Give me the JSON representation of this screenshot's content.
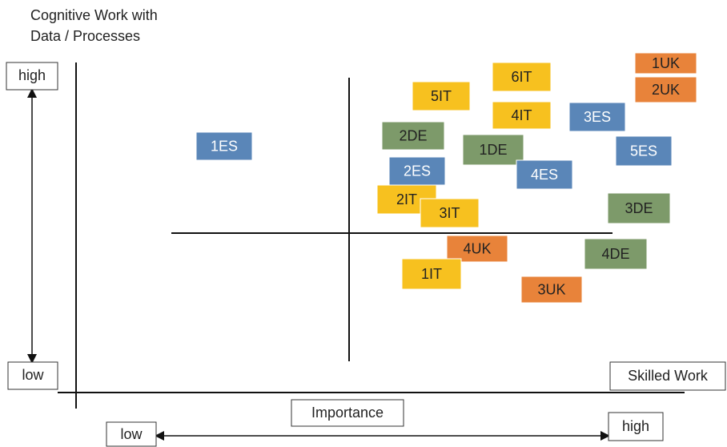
{
  "title": [
    "Cognitive Work with",
    "Data / Processes"
  ],
  "y_axis": {
    "high": "high",
    "low": "low"
  },
  "x_axis": {
    "label": "Importance",
    "low": "low",
    "high": "high",
    "end": "Skilled Work"
  },
  "nodes": [
    {
      "label": "1UK"
    },
    {
      "label": "2UK"
    },
    {
      "label": "6IT"
    },
    {
      "label": "5IT"
    },
    {
      "label": "4IT"
    },
    {
      "label": "3ES"
    },
    {
      "label": "2DE"
    },
    {
      "label": "1ES"
    },
    {
      "label": "1DE"
    },
    {
      "label": "5ES"
    },
    {
      "label": "2ES"
    },
    {
      "label": "4ES"
    },
    {
      "label": "2IT"
    },
    {
      "label": "3IT"
    },
    {
      "label": "3DE"
    },
    {
      "label": "4UK"
    },
    {
      "label": "4DE"
    },
    {
      "label": "1IT"
    },
    {
      "label": "3UK"
    }
  ]
}
